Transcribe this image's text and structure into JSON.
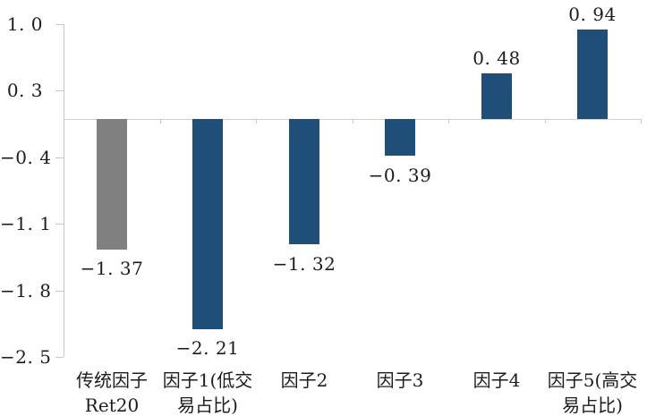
{
  "chart_data": {
    "type": "bar",
    "title": "",
    "xlabel": "",
    "ylabel": "",
    "grid": false,
    "legend": null,
    "categories": [
      "传统因子 Ret20",
      "因子1(低交易占比)",
      "因子2",
      "因子3",
      "因子4",
      "因子5(高交易占比)"
    ],
    "category_label_lines": [
      [
        "传统因子",
        "Ret20"
      ],
      [
        "因子1(低交",
        "易占比)"
      ],
      [
        "因子2"
      ],
      [
        "因子3"
      ],
      [
        "因子4"
      ],
      [
        "因子5(高交",
        "易占比)"
      ]
    ],
    "values": [
      -1.37,
      -2.21,
      -1.32,
      -0.39,
      0.48,
      0.94
    ],
    "value_labels": [
      "−1. 37",
      "−2. 21",
      "−1. 32",
      "−0. 39",
      "0. 48",
      "0. 94"
    ],
    "bar_colors": [
      "#808080",
      "#1F4E79",
      "#1F4E79",
      "#1F4E79",
      "#1F4E79",
      "#1F4E79"
    ],
    "y_ticks": [
      1.0,
      0.3,
      -0.4,
      -1.1,
      -1.8,
      -2.5
    ],
    "y_tick_labels": [
      "1. 0",
      "0. 3",
      "−0. 4",
      "−1. 1",
      "−1. 8",
      "−2. 5"
    ],
    "ylim": [
      -2.5,
      1.0
    ],
    "colors": {
      "default_bar": "#1F4E79",
      "highlight_bar": "#808080",
      "axis": "#C6C6C6",
      "zero_line": "#D0D0D0",
      "text": "#1C1C1C"
    }
  }
}
